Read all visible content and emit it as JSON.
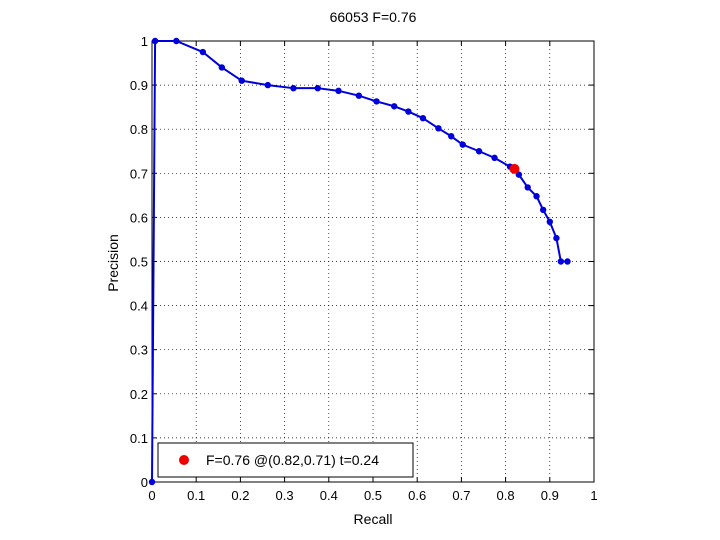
{
  "chart_data": {
    "type": "line",
    "title": "66053 F=0.76",
    "xlabel": "Recall",
    "ylabel": "Precision",
    "xlim": [
      0,
      1
    ],
    "ylim": [
      0,
      1
    ],
    "grid": true,
    "xticks": [
      0,
      0.1,
      0.2,
      0.3,
      0.4,
      0.5,
      0.6,
      0.7,
      0.8,
      0.9,
      1
    ],
    "yticks": [
      0,
      0.1,
      0.2,
      0.3,
      0.4,
      0.5,
      0.6,
      0.7,
      0.8,
      0.9,
      1
    ],
    "xtick_labels": [
      "0",
      "0.1",
      "0.2",
      "0.3",
      "0.4",
      "0.5",
      "0.6",
      "0.7",
      "0.8",
      "0.9",
      "1"
    ],
    "ytick_labels": [
      "0",
      "0.1",
      "0.2",
      "0.3",
      "0.4",
      "0.5",
      "0.6",
      "0.7",
      "0.8",
      "0.9",
      "1"
    ],
    "series": [
      {
        "color": "#0000dd",
        "x": [
          0,
          0.007,
          0.055,
          0.115,
          0.158,
          0.203,
          0.262,
          0.32,
          0.375,
          0.422,
          0.468,
          0.508,
          0.548,
          0.58,
          0.613,
          0.648,
          0.677,
          0.703,
          0.74,
          0.775,
          0.81,
          0.83,
          0.85,
          0.87,
          0.885,
          0.9,
          0.915,
          0.925,
          0.94
        ],
        "y": [
          0,
          1.0,
          1.0,
          0.975,
          0.94,
          0.91,
          0.9,
          0.893,
          0.893,
          0.887,
          0.876,
          0.863,
          0.852,
          0.84,
          0.825,
          0.802,
          0.784,
          0.765,
          0.75,
          0.735,
          0.715,
          0.697,
          0.668,
          0.648,
          0.617,
          0.59,
          0.553,
          0.5,
          0.5
        ]
      }
    ],
    "highlight_point": {
      "x": 0.82,
      "y": 0.71,
      "color": "#ee0000"
    },
    "legend": {
      "position": "bottom-left",
      "label": "F=0.76 @(0.82,0.71) t=0.24",
      "marker_color": "#ee0000"
    }
  }
}
